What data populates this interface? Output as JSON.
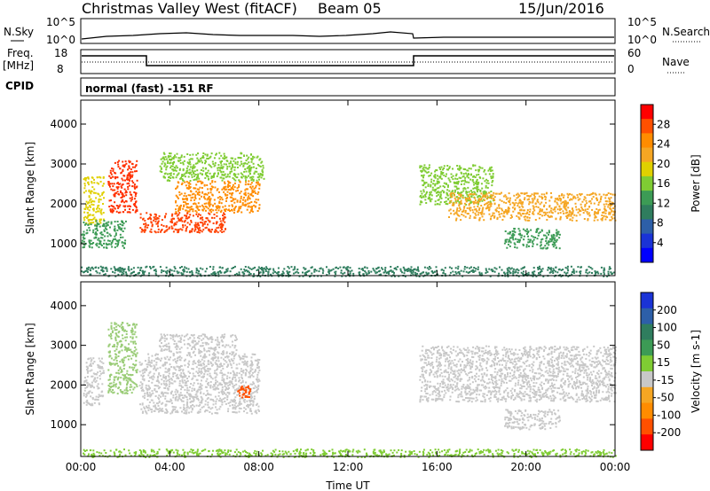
{
  "header": {
    "title": "Christmas Valley West (fitACF)",
    "beam": "Beam 05",
    "date": "15/Jun/2016"
  },
  "top_labels": {
    "nsky": "N.Sky",
    "nsky_hi": "10^5",
    "nsky_lo": "10^0",
    "nsearch": "N.Search",
    "nsearch_hi": "10^5",
    "nsearch_lo": "10^0",
    "freq": "Freq.",
    "freq_unit": "[MHz]",
    "freq_hi": "18",
    "freq_lo": "8",
    "nave": "Nave",
    "nave_hi": "60",
    "nave_lo": "0",
    "cpid": "CPID",
    "cpid_text": "normal (fast) -151 RF"
  },
  "chart_data": [
    {
      "type": "heatmap",
      "name": "power",
      "ylabel": "Slant Range [km]",
      "xlabel": "Time UT",
      "x_ticks": [
        "00:00",
        "04:00",
        "08:00",
        "12:00",
        "16:00",
        "20:00",
        "00:00"
      ],
      "y_ticks": [
        1000,
        2000,
        3000,
        4000
      ],
      "ylim": [
        200,
        4600
      ],
      "colorbar_label": "Power [dB]",
      "colorbar_ticks": [
        "28",
        "24",
        "20",
        "16",
        "12",
        "8",
        "4"
      ],
      "colorbar_colors": [
        "#ff0000",
        "#ff5000",
        "#ff8c00",
        "#f5a623",
        "#e0d000",
        "#7fcc33",
        "#3c9b55",
        "#2f7d5e",
        "#2d5fa8",
        "#1a33d6",
        "#0000ff"
      ],
      "regions": [
        {
          "t0": 0.1,
          "t1": 1.0,
          "r0": 1500,
          "r1": 2700,
          "color": "#e0d000"
        },
        {
          "t0": 1.2,
          "t1": 2.5,
          "r0": 1800,
          "r1": 3100,
          "color": "#ff3000"
        },
        {
          "t0": 2.6,
          "t1": 6.5,
          "r0": 1300,
          "r1": 1800,
          "color": "#ff4000"
        },
        {
          "t0": 4.2,
          "t1": 8.0,
          "r0": 1800,
          "r1": 2600,
          "color": "#ff8c00"
        },
        {
          "t0": 3.5,
          "t1": 8.2,
          "r0": 2600,
          "r1": 3300,
          "color": "#7fcc33"
        },
        {
          "t0": 0.0,
          "t1": 2.0,
          "r0": 900,
          "r1": 1600,
          "color": "#3c9b55"
        },
        {
          "t0": 15.2,
          "t1": 18.5,
          "r0": 2000,
          "r1": 3000,
          "color": "#7fcc33"
        },
        {
          "t0": 16.5,
          "t1": 24.0,
          "r0": 1600,
          "r1": 2300,
          "color": "#f5a623"
        },
        {
          "t0": 19.0,
          "t1": 21.5,
          "r0": 900,
          "r1": 1400,
          "color": "#3c9b55"
        },
        {
          "t0": 0.0,
          "t1": 24.0,
          "r0": 200,
          "r1": 450,
          "color": "#2f7d5e"
        }
      ]
    },
    {
      "type": "heatmap",
      "name": "velocity",
      "ylabel": "Slant Range [km]",
      "xlabel": "Time UT",
      "x_ticks": [
        "00:00",
        "04:00",
        "08:00",
        "12:00",
        "16:00",
        "20:00",
        "00:00"
      ],
      "y_ticks": [
        1000,
        2000,
        3000,
        4000
      ],
      "ylim": [
        200,
        4600
      ],
      "colorbar_label": "Velocity [m s-1]",
      "colorbar_ticks": [
        "200",
        "100",
        "50",
        "15",
        "-15",
        "-50",
        "-100",
        "-200"
      ],
      "colorbar_colors": [
        "#1a33d6",
        "#2d5fa8",
        "#2f7d5e",
        "#3c9b55",
        "#7fcc33",
        "#c8c8c8",
        "#f5a623",
        "#ff8c00",
        "#ff5000",
        "#ff0000"
      ],
      "regions": [
        {
          "t0": 0.1,
          "t1": 1.0,
          "r0": 1500,
          "r1": 2700,
          "color": "#c8c8c8"
        },
        {
          "t0": 1.2,
          "t1": 2.5,
          "r0": 1800,
          "r1": 3600,
          "color": "#9acc77"
        },
        {
          "t0": 2.6,
          "t1": 8.0,
          "r0": 1300,
          "r1": 2800,
          "color": "#c8c8c8"
        },
        {
          "t0": 3.5,
          "t1": 7.0,
          "r0": 2800,
          "r1": 3300,
          "color": "#c8c8c8"
        },
        {
          "t0": 7.0,
          "t1": 7.6,
          "r0": 1700,
          "r1": 2000,
          "color": "#ff5000"
        },
        {
          "t0": 15.2,
          "t1": 24.0,
          "r0": 1600,
          "r1": 3000,
          "color": "#c8c8c8"
        },
        {
          "t0": 19.0,
          "t1": 21.5,
          "r0": 900,
          "r1": 1400,
          "color": "#c8c8c8"
        },
        {
          "t0": 0.0,
          "t1": 24.0,
          "r0": 200,
          "r1": 400,
          "color": "#7fcc33"
        }
      ]
    }
  ]
}
